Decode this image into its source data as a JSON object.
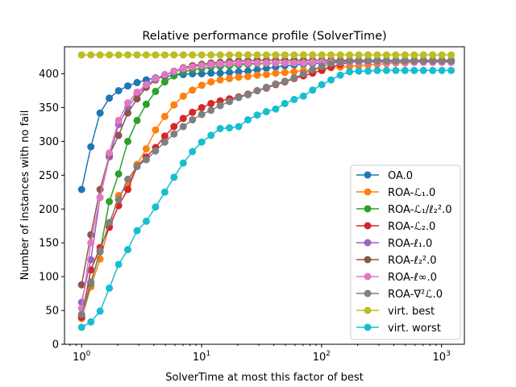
{
  "chart_data": {
    "type": "line",
    "title": "Relative performance profile (SolverTime)",
    "xlabel": "SolverTime at most this factor of best",
    "ylabel": "Number of instances with no fail",
    "xscale": "log",
    "xlim": [
      0.72,
      1550
    ],
    "ylim": [
      0,
      440
    ],
    "grid": false,
    "legend_position": "lower-right",
    "x_ticks": [
      {
        "value": 1,
        "base": "10",
        "exp": "0"
      },
      {
        "value": 10,
        "base": "10",
        "exp": "1"
      },
      {
        "value": 100,
        "base": "10",
        "exp": "2"
      },
      {
        "value": 1000,
        "base": "10",
        "exp": "3"
      }
    ],
    "y_ticks": [
      0,
      50,
      100,
      150,
      200,
      250,
      300,
      350,
      400
    ],
    "x_step_factor": 1.194,
    "n_points": 41,
    "series": [
      {
        "name": "OA.0",
        "color": "#1f77b4",
        "values": [
          229,
          292,
          342,
          364,
          375,
          382,
          387,
          391,
          394,
          396,
          398,
          399,
          400,
          400,
          401,
          401,
          402,
          403,
          404,
          406,
          408,
          410,
          412,
          413,
          414,
          415,
          416,
          416,
          417,
          417,
          417,
          417,
          418,
          418,
          418,
          418,
          418,
          418,
          418,
          418,
          418
        ]
      },
      {
        "name": "ROA-ℒ₁.0",
        "color": "#ff7f0e",
        "values": [
          38,
          85,
          126,
          175,
          220,
          235,
          266,
          289,
          317,
          337,
          354,
          367,
          376,
          383,
          388,
          391,
          393,
          395,
          396,
          398,
          399,
          401,
          402,
          403,
          405,
          406,
          408,
          409,
          410,
          411,
          412,
          413,
          414,
          415,
          416,
          416,
          417,
          417,
          417,
          417,
          417
        ]
      },
      {
        "name": "ROA-ℒ₁/ℓ₂².0",
        "color": "#2ca02c",
        "values": [
          40,
          90,
          137,
          211,
          252,
          300,
          331,
          355,
          374,
          388,
          397,
          403,
          406,
          408,
          410,
          411,
          412,
          413,
          414,
          415,
          415,
          416,
          416,
          417,
          417,
          417,
          417,
          418,
          418,
          418,
          418,
          418,
          418,
          418,
          418,
          418,
          418,
          418,
          418,
          418,
          418
        ]
      },
      {
        "name": "ROA-ℒ₂.0",
        "color": "#d62728",
        "values": [
          40,
          110,
          143,
          173,
          205,
          229,
          263,
          277,
          291,
          308,
          322,
          334,
          343,
          350,
          356,
          360,
          363,
          366,
          370,
          375,
          379,
          384,
          388,
          393,
          397,
          401,
          405,
          410,
          414,
          417,
          418,
          419,
          419,
          419,
          419,
          419,
          419,
          419,
          419,
          419,
          419
        ]
      },
      {
        "name": "ROA-ℓ₁.0",
        "color": "#9467bd",
        "values": [
          62,
          125,
          217,
          277,
          325,
          350,
          370,
          381,
          391,
          398,
          403,
          407,
          410,
          412,
          413,
          414,
          415,
          415,
          416,
          416,
          416,
          416,
          416,
          417,
          417,
          417,
          417,
          417,
          417,
          418,
          418,
          418,
          418,
          418,
          418,
          418,
          418,
          418,
          418,
          418,
          418
        ]
      },
      {
        "name": "ROA-ℓ₂².0",
        "color": "#8c564b",
        "values": [
          88,
          162,
          229,
          280,
          309,
          342,
          363,
          380,
          391,
          398,
          404,
          409,
          412,
          414,
          416,
          417,
          418,
          419,
          419,
          420,
          420,
          420,
          420,
          420,
          420,
          420,
          420,
          420,
          420,
          420,
          420,
          420,
          420,
          420,
          420,
          420,
          420,
          420,
          420,
          420,
          420
        ]
      },
      {
        "name": "ROA-ℓ∞.0",
        "color": "#e377c2",
        "values": [
          53,
          150,
          217,
          283,
          331,
          357,
          373,
          384,
          393,
          399,
          404,
          408,
          410,
          412,
          414,
          415,
          415,
          416,
          416,
          416,
          416,
          416,
          416,
          416,
          416,
          417,
          417,
          417,
          417,
          417,
          417,
          417,
          417,
          417,
          417,
          417,
          417,
          417,
          417,
          417,
          417
        ]
      },
      {
        "name": "ROA-∇²ℒ.0",
        "color": "#7f7f7f",
        "values": [
          44,
          92,
          138,
          180,
          214,
          244,
          263,
          273,
          286,
          299,
          311,
          322,
          332,
          340,
          346,
          353,
          359,
          365,
          369,
          375,
          380,
          385,
          389,
          394,
          400,
          406,
          411,
          415,
          418,
          419,
          419,
          419,
          419,
          419,
          419,
          419,
          419,
          419,
          419,
          419,
          419
        ]
      },
      {
        "name": "virt. best",
        "color": "#bcbd22",
        "values": [
          428,
          428,
          428,
          428,
          428,
          428,
          428,
          428,
          428,
          428,
          428,
          428,
          428,
          428,
          428,
          428,
          428,
          428,
          428,
          428,
          428,
          428,
          428,
          428,
          428,
          428,
          428,
          428,
          428,
          428,
          428,
          428,
          428,
          428,
          428,
          428,
          428,
          428,
          428,
          428,
          428
        ]
      },
      {
        "name": "virt. worst",
        "color": "#17becf",
        "values": [
          25,
          33,
          49,
          83,
          118,
          140,
          168,
          182,
          203,
          225,
          247,
          268,
          285,
          299,
          309,
          319,
          320,
          322,
          332,
          339,
          344,
          348,
          356,
          362,
          367,
          376,
          384,
          391,
          398,
          403,
          404,
          404,
          405,
          405,
          405,
          405,
          405,
          405,
          405,
          405,
          405
        ]
      }
    ]
  }
}
